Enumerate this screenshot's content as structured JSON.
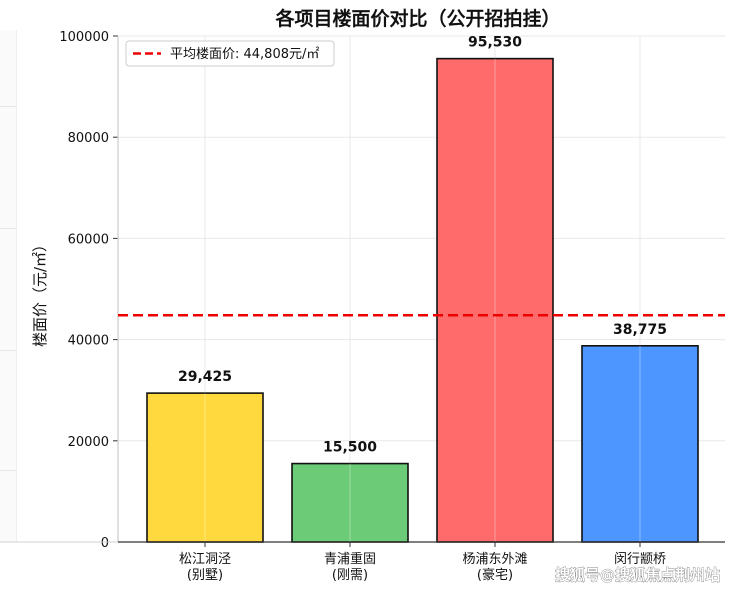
{
  "chart_data": {
    "type": "bar",
    "title": "各项目楼面价对比（公开招拍挂）",
    "ylabel": "楼面价（元/㎡）",
    "xlabel": "",
    "categories": [
      [
        "松江洞泾",
        "(别墅)"
      ],
      [
        "青浦重固",
        "(刚需)"
      ],
      [
        "杨浦东外滩",
        "(豪宅)"
      ],
      [
        "闵行颛桥",
        ""
      ]
    ],
    "values": [
      29425,
      15500,
      95530,
      38775
    ],
    "value_labels": [
      "29,425",
      "15,500",
      "95,530",
      "38,775"
    ],
    "colors": [
      "#FFD93D",
      "#6BCB77",
      "#FF6B6B",
      "#4D96FF"
    ],
    "ylim": [
      0,
      100000
    ],
    "yticks": [
      0,
      20000,
      40000,
      60000,
      80000,
      100000
    ],
    "grid": true,
    "reference_line": {
      "value": 44808,
      "label": "平均楼面价: 44,808元/㎡",
      "color": "#EE0000",
      "style": "dashed"
    },
    "legend_position": "top-left"
  },
  "watermark": "搜狐号@搜狐焦点荆州站"
}
